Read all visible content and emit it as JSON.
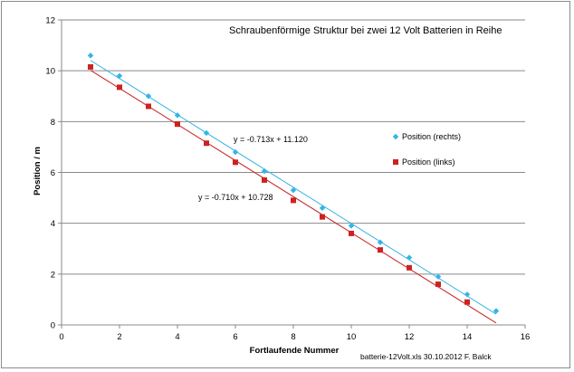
{
  "chart_data": {
    "type": "scatter",
    "title": "Schraubenförmige  Struktur bei zwei 12 Volt Batterien in Reihe",
    "xlabel": "Fortlaufende Nummer",
    "ylabel": "Position / m",
    "xlim": [
      0,
      16
    ],
    "ylim": [
      0,
      12
    ],
    "x_ticks": [
      "0",
      "2",
      "4",
      "6",
      "8",
      "10",
      "12",
      "14",
      "16"
    ],
    "y_ticks": [
      "0",
      "2",
      "4",
      "6",
      "8",
      "10",
      "12"
    ],
    "grid": "horizontal",
    "legend_position": "right",
    "series": [
      {
        "name": "Position (rechts)",
        "color": "#33b5e5",
        "marker": "diamond",
        "x": [
          1,
          2,
          3,
          4,
          5,
          6,
          7,
          8,
          9,
          10,
          11,
          12,
          13,
          14,
          15
        ],
        "y": [
          10.6,
          9.8,
          9.0,
          8.25,
          7.55,
          6.8,
          6.05,
          5.3,
          4.6,
          3.9,
          3.25,
          2.65,
          1.9,
          1.2,
          0.55
        ],
        "trendline": {
          "slope": -0.713,
          "intercept": 11.12,
          "x_range": [
            1,
            15
          ],
          "color": "#33b5e5"
        },
        "equation": "y = -0.713x + 11.120"
      },
      {
        "name": "Position (links)",
        "color": "#cc2222",
        "marker": "square",
        "x": [
          1,
          2,
          3,
          4,
          5,
          6,
          7,
          8,
          9,
          10,
          11,
          12,
          13,
          14,
          15
        ],
        "y": [
          10.15,
          9.35,
          8.6,
          7.9,
          7.15,
          6.4,
          5.7,
          4.9,
          4.25,
          3.6,
          2.95,
          2.25,
          1.6,
          0.9,
          null
        ],
        "trendline": {
          "slope": -0.71,
          "intercept": 10.728,
          "x_range": [
            1,
            15
          ],
          "color": "#cc2222"
        },
        "equation": "y = -0.710x + 10.728"
      }
    ],
    "footnote": "batterie-12Volt.xls  30.10.2012  F. Balck"
  }
}
